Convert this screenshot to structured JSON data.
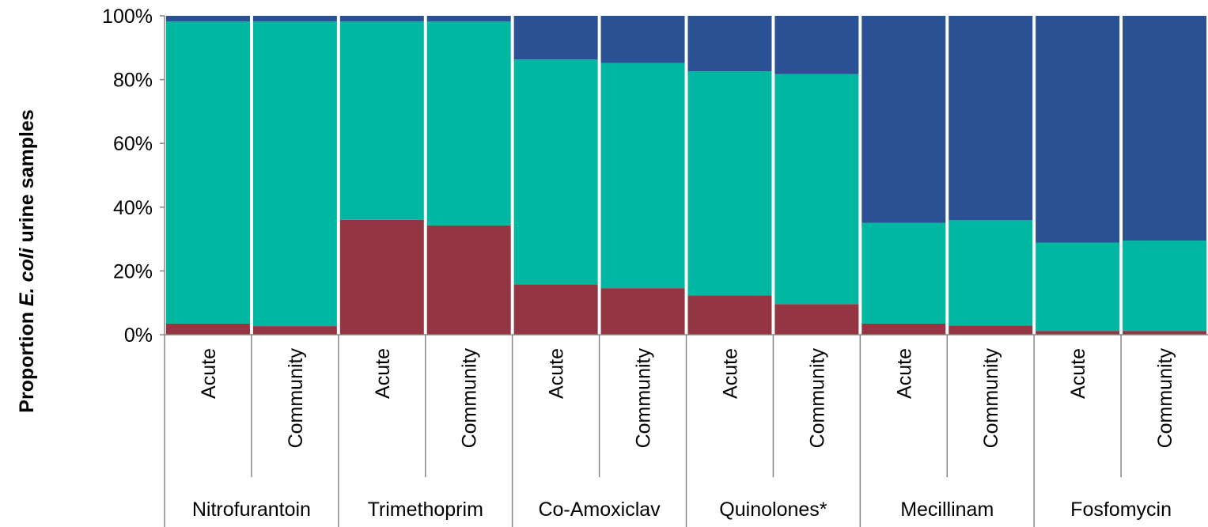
{
  "chart_data": {
    "type": "bar",
    "stacked": true,
    "ylabel": {
      "prefix": "Proportion ",
      "italic": "E. coli",
      "suffix": " urine samples"
    },
    "ylim": [
      0,
      100
    ],
    "yticks": [
      "0%",
      "20%",
      "40%",
      "60%",
      "80%",
      "100%"
    ],
    "ytick_values": [
      0,
      20,
      40,
      60,
      80,
      100
    ],
    "groups": [
      "Nitrofurantoin",
      "Trimethoprim",
      "Co-Amoxiclav",
      "Quinolones*",
      "Mecillinam",
      "Fosfomycin"
    ],
    "subcategories": [
      "Acute",
      "Community"
    ],
    "categories": [
      "Acute",
      "Community",
      "Acute",
      "Community",
      "Acute",
      "Community",
      "Acute",
      "Community",
      "Acute",
      "Community",
      "Acute",
      "Community"
    ],
    "series": [
      {
        "color": "#943642",
        "values": [
          3.5,
          2.7,
          36,
          34.3,
          15.8,
          14.6,
          12.3,
          9.6,
          3.5,
          2.9,
          1.2,
          1.2
        ]
      },
      {
        "color": "#00B8A1",
        "values": [
          94.7,
          95.5,
          62.2,
          63.9,
          70.5,
          70.6,
          70.3,
          72.1,
          31.6,
          33.0,
          27.7,
          28.3
        ]
      },
      {
        "color": "#2A5193",
        "values": [
          1.8,
          1.8,
          1.8,
          1.8,
          13.7,
          14.8,
          17.4,
          18.3,
          64.9,
          64.1,
          71.1,
          70.5
        ]
      }
    ],
    "grid": false,
    "legend": "none"
  }
}
